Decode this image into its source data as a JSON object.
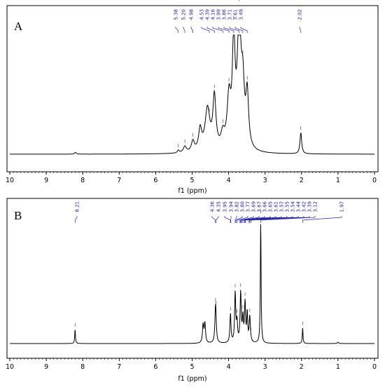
{
  "chart_data": [
    {
      "type": "line",
      "panel_label": "A",
      "xlabel": "f1 (ppm)",
      "xlim": [
        10,
        0
      ],
      "x_reversed": true,
      "x_ticks": [
        "10",
        "9",
        "8",
        "7",
        "6",
        "5",
        "4",
        "3",
        "2",
        "1",
        "0"
      ],
      "grid": false,
      "peak_labels": [
        "5.38",
        "5.20",
        "4.98",
        "4.53",
        "4.39",
        "4.16",
        "3.99",
        "3.86",
        "3.71",
        "3.61",
        "3.49",
        "2.02"
      ],
      "spectrum_peaks": [
        {
          "ppm": 8.2,
          "height": 0.01,
          "width": 0.03
        },
        {
          "ppm": 5.38,
          "height": 0.015,
          "width": 0.03
        },
        {
          "ppm": 5.2,
          "height": 0.035,
          "width": 0.05
        },
        {
          "ppm": 4.98,
          "height": 0.06,
          "width": 0.05
        },
        {
          "ppm": 4.78,
          "height": 0.12,
          "width": 0.05
        },
        {
          "ppm": 4.58,
          "height": 0.24,
          "width": 0.08
        },
        {
          "ppm": 4.39,
          "height": 0.3,
          "width": 0.05
        },
        {
          "ppm": 4.16,
          "height": 0.08,
          "width": 0.06
        },
        {
          "ppm": 3.99,
          "height": 0.28,
          "width": 0.06
        },
        {
          "ppm": 3.86,
          "height": 0.58,
          "width": 0.045
        },
        {
          "ppm": 3.71,
          "height": 0.72,
          "width": 0.06
        },
        {
          "ppm": 3.61,
          "height": 0.3,
          "width": 0.05
        },
        {
          "ppm": 3.49,
          "height": 0.3,
          "width": 0.045
        },
        {
          "ppm": 2.02,
          "height": 0.12,
          "width": 0.028
        }
      ]
    },
    {
      "type": "line",
      "panel_label": "B",
      "xlabel": "f1 (ppm)",
      "xlim": [
        10,
        0
      ],
      "x_reversed": true,
      "x_ticks": [
        "10",
        "9",
        "8",
        "7",
        "6",
        "5",
        "4",
        "3",
        "2",
        "1",
        "0"
      ],
      "grid": false,
      "peak_labels": [
        "8.21",
        "4.36",
        "4.35",
        "3.95",
        "3.94",
        "3.82",
        "3.80",
        "3.77",
        "3.69",
        "3.67",
        "3.66",
        "3.65",
        "3.61",
        "3.57",
        "3.55",
        "3.54",
        "3.44",
        "3.42",
        "3.39",
        "3.12",
        "1.97"
      ],
      "spectrum_peaks": [
        {
          "ppm": 8.21,
          "height": 0.11,
          "width": 0.012
        },
        {
          "ppm": 4.7,
          "height": 0.14,
          "width": 0.02
        },
        {
          "ppm": 4.65,
          "height": 0.15,
          "width": 0.02
        },
        {
          "ppm": 4.36,
          "height": 0.22,
          "width": 0.02
        },
        {
          "ppm": 4.35,
          "height": 0.1,
          "width": 0.02
        },
        {
          "ppm": 3.95,
          "height": 0.22,
          "width": 0.018
        },
        {
          "ppm": 3.82,
          "height": 0.38,
          "width": 0.018
        },
        {
          "ppm": 3.77,
          "height": 0.15,
          "width": 0.018
        },
        {
          "ppm": 3.67,
          "height": 0.38,
          "width": 0.018
        },
        {
          "ppm": 3.61,
          "height": 0.18,
          "width": 0.018
        },
        {
          "ppm": 3.55,
          "height": 0.3,
          "width": 0.018
        },
        {
          "ppm": 3.49,
          "height": 0.22,
          "width": 0.015
        },
        {
          "ppm": 3.42,
          "height": 0.2,
          "width": 0.02
        },
        {
          "ppm": 3.12,
          "height": 0.98,
          "width": 0.012
        },
        {
          "ppm": 1.97,
          "height": 0.12,
          "width": 0.012
        },
        {
          "ppm": 1.0,
          "height": 0.01,
          "width": 0.02
        }
      ]
    }
  ]
}
